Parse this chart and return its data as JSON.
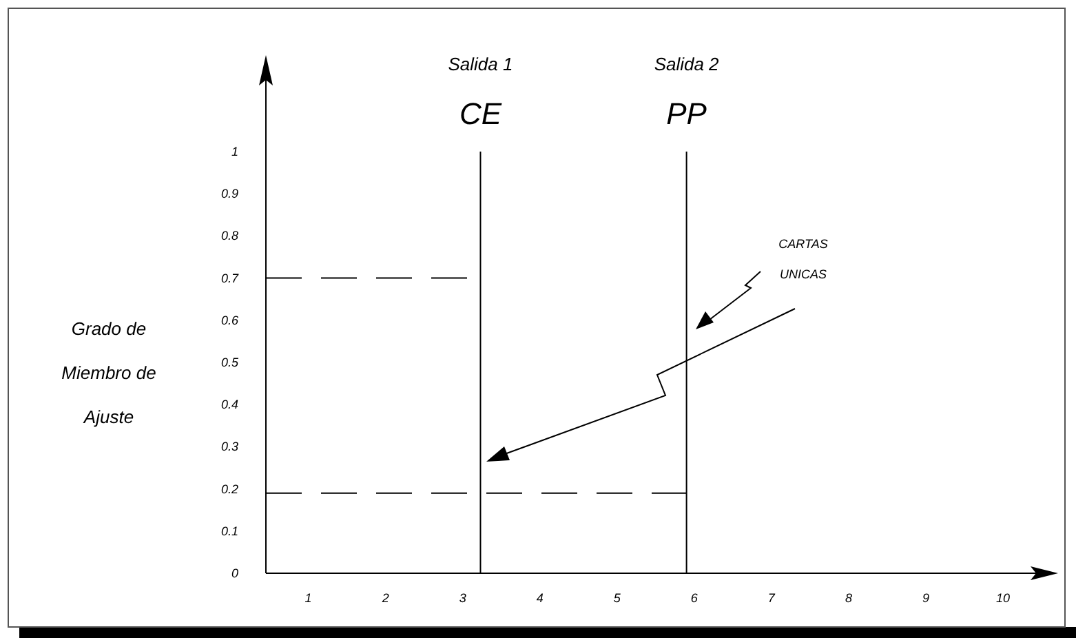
{
  "chart_data": {
    "type": "line",
    "ylabel": "Grado de Miembro de Ajuste",
    "xlim": [
      0.45,
      10.5
    ],
    "xticks": [
      1,
      2,
      3,
      4,
      5,
      6,
      7,
      8,
      9,
      10
    ],
    "ylim": [
      0,
      1
    ],
    "yticks": [
      0,
      0.1,
      0.2,
      0.3,
      0.4,
      0.5,
      0.6,
      0.7,
      0.8,
      0.9,
      1
    ],
    "series": [
      {
        "color": "#000000",
        "x": [
          0.45,
          3.2
        ],
        "values": [
          0.7,
          0.7
        ],
        "line_style": "dashed"
      },
      {
        "color": "#000000",
        "x": [
          0.45,
          5.9
        ],
        "values": [
          0.19,
          0.19
        ],
        "line_style": "dashed"
      }
    ],
    "ref_lines": [
      {
        "axis": "x",
        "value": 3.23,
        "label": "CE",
        "color": "#000000",
        "line_style": "solid"
      },
      {
        "axis": "x",
        "value": 5.9,
        "label": "PP",
        "color": "#000000",
        "line_style": "solid"
      }
    ],
    "annotations": [
      "Salida 1",
      "Salida 2",
      "CARTAS UNICAS"
    ]
  }
}
